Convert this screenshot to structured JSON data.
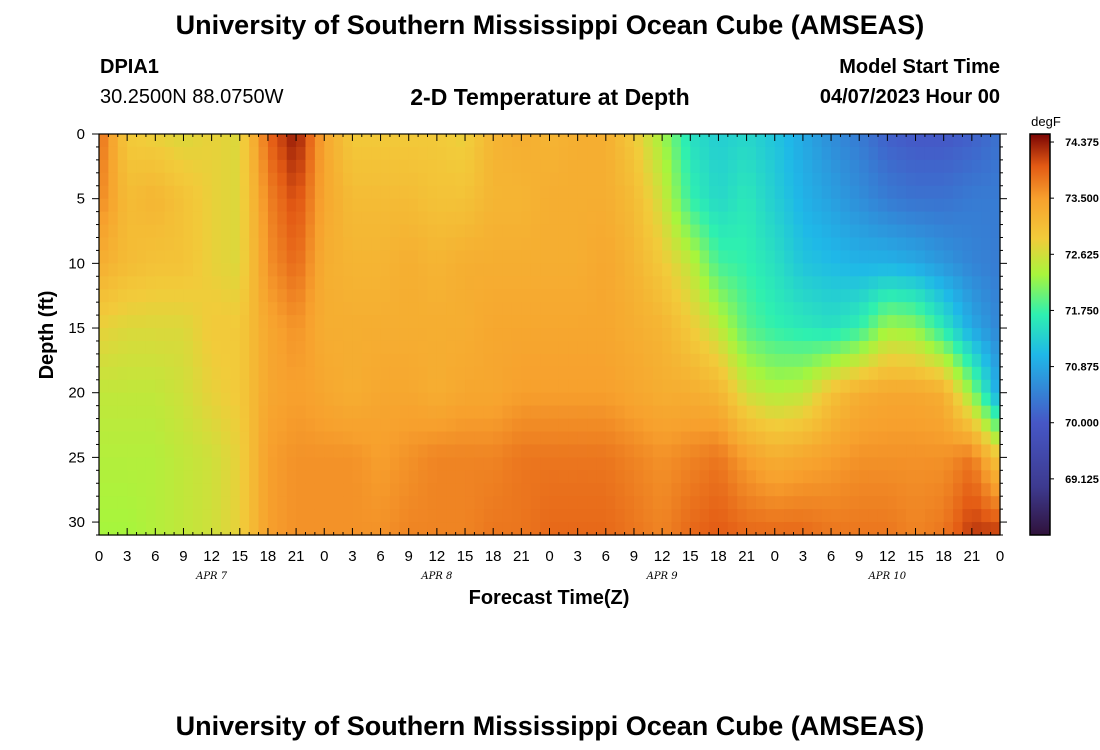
{
  "header": {
    "title": "University of Southern Mississippi Ocean Cube (AMSEAS)",
    "station": "DPIA1",
    "coords": "30.2500N  88.0750W",
    "chart_title": "2-D Temperature at Depth",
    "model_label": "Model Start Time",
    "model_time": "04/07/2023 Hour 00"
  },
  "footer": {
    "title": "University of Southern Mississippi Ocean Cube (AMSEAS)"
  },
  "chart_data": {
    "type": "heatmap",
    "title": "2-D Temperature at Depth",
    "xlabel": "Forecast Time(Z)",
    "ylabel": "Depth (ft)",
    "units": "degF",
    "xlim": [
      0,
      96
    ],
    "ylim": [
      31,
      0
    ],
    "x_tick_labels": [
      "0",
      "3",
      "6",
      "9",
      "12",
      "15",
      "18",
      "21",
      "0",
      "3",
      "6",
      "9",
      "12",
      "15",
      "18",
      "21",
      "0",
      "3",
      "6",
      "9",
      "12",
      "15",
      "18",
      "21",
      "0",
      "3",
      "6",
      "9",
      "12",
      "15",
      "18",
      "21",
      "0"
    ],
    "y_ticks": [
      0,
      5,
      10,
      15,
      20,
      25,
      30
    ],
    "day_labels": [
      {
        "label": "APR 7",
        "hour": 12
      },
      {
        "label": "APR 8",
        "hour": 36
      },
      {
        "label": "APR 9",
        "hour": 60
      },
      {
        "label": "APR 10",
        "hour": 84
      }
    ],
    "colorbar": {
      "min": 68.25,
      "max": 74.5,
      "ticks": [
        74.375,
        73.5,
        72.625,
        71.75,
        70.875,
        70.0,
        69.125
      ],
      "tick_labels": [
        "74.375",
        "73.500",
        "72.625",
        "71.750",
        "70.875",
        "70.000",
        "69.125"
      ]
    },
    "depths": [
      0,
      5,
      10,
      15,
      20,
      25,
      31
    ],
    "hours": [
      0,
      3,
      6,
      9,
      12,
      15,
      18,
      21,
      24,
      27,
      30,
      33,
      36,
      39,
      42,
      45,
      48,
      51,
      54,
      57,
      60,
      63,
      66,
      69,
      72,
      75,
      78,
      81,
      84,
      87,
      90,
      93,
      96
    ],
    "temperature": [
      [
        73.9,
        72.9,
        72.8,
        72.7,
        72.8,
        72.7,
        73.9,
        74.4,
        73.4,
        72.9,
        72.9,
        72.9,
        72.9,
        72.8,
        73.2,
        73.3,
        73.2,
        73.3,
        73.3,
        72.9,
        72.3,
        71.5,
        71.3,
        71.4,
        71.2,
        70.9,
        70.6,
        70.4,
        70.1,
        70.0,
        70.0,
        70.1,
        70.3
      ],
      [
        73.7,
        73.1,
        73.2,
        73.0,
        72.8,
        72.7,
        73.7,
        74.1,
        73.4,
        73.1,
        73.1,
        73.1,
        73.0,
        73.0,
        73.2,
        73.2,
        73.3,
        73.3,
        73.3,
        73.1,
        72.6,
        71.7,
        71.4,
        71.6,
        71.3,
        71.0,
        70.8,
        70.6,
        70.4,
        70.3,
        70.3,
        70.4,
        70.4
      ],
      [
        73.3,
        73.1,
        73.0,
        73.0,
        72.8,
        72.7,
        73.6,
        73.9,
        73.3,
        73.2,
        73.2,
        73.3,
        73.2,
        73.3,
        73.3,
        73.3,
        73.3,
        73.3,
        73.4,
        73.2,
        72.9,
        72.5,
        71.8,
        71.7,
        71.5,
        71.2,
        71.1,
        71.0,
        71.0,
        70.9,
        70.7,
        70.5,
        70.4
      ],
      [
        72.8,
        72.7,
        72.7,
        72.7,
        72.9,
        72.9,
        73.4,
        73.6,
        73.3,
        73.3,
        73.3,
        73.3,
        73.3,
        73.3,
        73.4,
        73.4,
        73.4,
        73.4,
        73.4,
        73.3,
        73.2,
        72.9,
        72.5,
        71.9,
        71.7,
        71.6,
        71.5,
        71.7,
        72.3,
        72.2,
        71.6,
        70.9,
        70.5
      ],
      [
        72.5,
        72.5,
        72.5,
        72.6,
        72.8,
        72.9,
        73.4,
        73.5,
        73.4,
        73.3,
        73.4,
        73.4,
        73.3,
        73.4,
        73.4,
        73.5,
        73.5,
        73.5,
        73.5,
        73.4,
        73.3,
        73.3,
        73.2,
        72.6,
        72.4,
        72.5,
        73.0,
        73.3,
        73.4,
        73.4,
        73.3,
        72.2,
        70.8
      ],
      [
        72.4,
        72.4,
        72.4,
        72.5,
        72.6,
        72.8,
        73.5,
        73.6,
        73.6,
        73.6,
        73.5,
        73.6,
        73.7,
        73.7,
        73.7,
        73.8,
        73.8,
        73.8,
        73.8,
        73.7,
        73.6,
        73.7,
        73.8,
        73.5,
        73.3,
        73.4,
        73.5,
        73.6,
        73.6,
        73.6,
        73.6,
        73.8,
        72.9
      ],
      [
        72.3,
        72.3,
        72.4,
        72.5,
        72.6,
        72.8,
        73.5,
        73.6,
        73.6,
        73.6,
        73.6,
        73.7,
        73.7,
        73.7,
        73.8,
        73.8,
        73.9,
        73.9,
        73.9,
        73.8,
        73.7,
        73.9,
        74.0,
        73.9,
        73.9,
        73.9,
        73.8,
        73.8,
        73.8,
        73.7,
        73.8,
        74.2,
        74.2
      ]
    ]
  }
}
